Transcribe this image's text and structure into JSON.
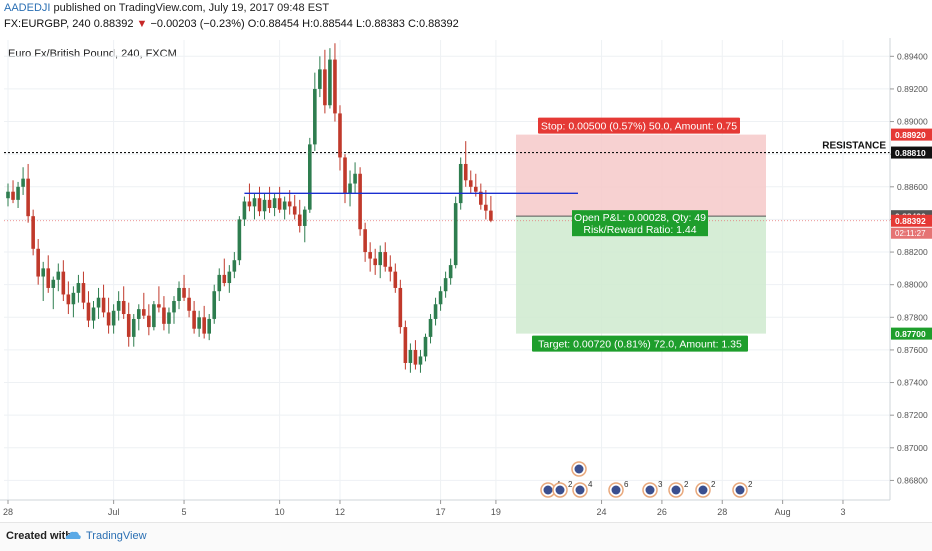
{
  "header": {
    "author": "AADEDJI",
    "published": "published on TradingView.com, July 19, 2017 09:48 EST",
    "symbol": "FX:EURGBP, 240",
    "last": "0.88392",
    "change_arrow": "▼",
    "change": "−0.00203 (−0.23%)",
    "open": "O:0.88454",
    "high": "H:0.88544",
    "low": "L:0.88383",
    "close": "C:0.88392"
  },
  "chart_title": "Euro Fx/British Pound, 240, FXCM",
  "footer": {
    "created_with": "Created with",
    "brand": "TradingView"
  },
  "colors": {
    "up": "#2e7d4f",
    "down": "#c0392b",
    "stop_zone": "#f6c9c9",
    "target_zone": "#cfeacf",
    "stop_label": "#e53935",
    "target_label": "#1e9e2c",
    "trendline": "#1a2fd0",
    "resistance": "#111111"
  },
  "chart_data": {
    "type": "candlestick",
    "title": "Euro Fx/British Pound, 240, FXCM",
    "ylim": [
      0.8668,
      0.895
    ],
    "y_ticks": [
      "0.89400",
      "0.89200",
      "0.89000",
      "0.88800",
      "0.88600",
      "0.88400",
      "0.88200",
      "0.88000",
      "0.87800",
      "0.87600",
      "0.87400",
      "0.87200",
      "0.87000",
      "0.86800"
    ],
    "x_ticks": [
      "28",
      "Jul",
      "5",
      "10",
      "12",
      "17",
      "19",
      "24",
      "26",
      "28",
      "Aug",
      "3"
    ],
    "grid": true,
    "candles": [
      [
        0.8853,
        0.8862,
        0.8848,
        0.8857
      ],
      [
        0.8857,
        0.8864,
        0.885,
        0.8852
      ],
      [
        0.8852,
        0.8863,
        0.8847,
        0.886
      ],
      [
        0.886,
        0.8872,
        0.8855,
        0.8865
      ],
      [
        0.8865,
        0.8874,
        0.8838,
        0.8842
      ],
      [
        0.8842,
        0.8846,
        0.8818,
        0.8822
      ],
      [
        0.8822,
        0.8828,
        0.88,
        0.8805
      ],
      [
        0.8805,
        0.8814,
        0.879,
        0.881
      ],
      [
        0.881,
        0.8818,
        0.8795,
        0.8798
      ],
      [
        0.8798,
        0.8805,
        0.8785,
        0.8803
      ],
      [
        0.8803,
        0.8813,
        0.8796,
        0.8808
      ],
      [
        0.8808,
        0.8815,
        0.879,
        0.8794
      ],
      [
        0.8794,
        0.8802,
        0.8782,
        0.8788
      ],
      [
        0.8788,
        0.8799,
        0.878,
        0.8795
      ],
      [
        0.8795,
        0.8806,
        0.8789,
        0.8801
      ],
      [
        0.8801,
        0.8808,
        0.8785,
        0.8789
      ],
      [
        0.8789,
        0.8796,
        0.8774,
        0.8778
      ],
      [
        0.8778,
        0.879,
        0.8773,
        0.8786
      ],
      [
        0.8786,
        0.8798,
        0.8779,
        0.8792
      ],
      [
        0.8792,
        0.88,
        0.878,
        0.8783
      ],
      [
        0.8783,
        0.8792,
        0.877,
        0.8775
      ],
      [
        0.8775,
        0.8788,
        0.877,
        0.8784
      ],
      [
        0.8784,
        0.8796,
        0.8778,
        0.879
      ],
      [
        0.879,
        0.8799,
        0.8779,
        0.8782
      ],
      [
        0.8782,
        0.8789,
        0.8762,
        0.8768
      ],
      [
        0.8768,
        0.8782,
        0.8762,
        0.8779
      ],
      [
        0.8779,
        0.8788,
        0.8772,
        0.8785
      ],
      [
        0.8785,
        0.8795,
        0.8779,
        0.8781
      ],
      [
        0.8781,
        0.8788,
        0.8769,
        0.8774
      ],
      [
        0.8774,
        0.879,
        0.8772,
        0.8788
      ],
      [
        0.8788,
        0.8799,
        0.8783,
        0.8786
      ],
      [
        0.8786,
        0.8793,
        0.8772,
        0.8776
      ],
      [
        0.8776,
        0.8786,
        0.877,
        0.8783
      ],
      [
        0.8783,
        0.8793,
        0.8776,
        0.879
      ],
      [
        0.879,
        0.8802,
        0.8785,
        0.8798
      ],
      [
        0.8798,
        0.8806,
        0.879,
        0.8792
      ],
      [
        0.8792,
        0.8798,
        0.878,
        0.8784
      ],
      [
        0.8784,
        0.879,
        0.877,
        0.8773
      ],
      [
        0.8773,
        0.8784,
        0.8768,
        0.878
      ],
      [
        0.878,
        0.8787,
        0.8767,
        0.877
      ],
      [
        0.877,
        0.8782,
        0.8766,
        0.8779
      ],
      [
        0.8779,
        0.88,
        0.8776,
        0.8796
      ],
      [
        0.8796,
        0.881,
        0.879,
        0.8806
      ],
      [
        0.8806,
        0.8816,
        0.8799,
        0.8801
      ],
      [
        0.8801,
        0.8812,
        0.8795,
        0.8808
      ],
      [
        0.8808,
        0.882,
        0.8804,
        0.8815
      ],
      [
        0.8815,
        0.8842,
        0.8812,
        0.884
      ],
      [
        0.884,
        0.8854,
        0.8836,
        0.8851
      ],
      [
        0.8851,
        0.8862,
        0.8845,
        0.8848
      ],
      [
        0.8848,
        0.8856,
        0.884,
        0.8853
      ],
      [
        0.8853,
        0.886,
        0.8842,
        0.8845
      ],
      [
        0.8845,
        0.8856,
        0.884,
        0.8852
      ],
      [
        0.8852,
        0.886,
        0.8844,
        0.8847
      ],
      [
        0.8847,
        0.8856,
        0.8842,
        0.8853
      ],
      [
        0.8853,
        0.886,
        0.8844,
        0.8846
      ],
      [
        0.8846,
        0.8854,
        0.884,
        0.8851
      ],
      [
        0.8851,
        0.8858,
        0.8843,
        0.8848
      ],
      [
        0.8848,
        0.8855,
        0.884,
        0.8843
      ],
      [
        0.8843,
        0.8852,
        0.8832,
        0.8836
      ],
      [
        0.8836,
        0.8848,
        0.8826,
        0.8846
      ],
      [
        0.8846,
        0.889,
        0.8844,
        0.8886
      ],
      [
        0.8886,
        0.893,
        0.8882,
        0.892
      ],
      [
        0.892,
        0.894,
        0.8915,
        0.8932
      ],
      [
        0.8932,
        0.8944,
        0.8905,
        0.891
      ],
      [
        0.891,
        0.8945,
        0.8908,
        0.8938
      ],
      [
        0.8938,
        0.8948,
        0.89,
        0.8905
      ],
      [
        0.8905,
        0.891,
        0.887,
        0.8878
      ],
      [
        0.8878,
        0.888,
        0.885,
        0.8856
      ],
      [
        0.8856,
        0.887,
        0.8848,
        0.8862
      ],
      [
        0.8862,
        0.8875,
        0.8856,
        0.8868
      ],
      [
        0.8868,
        0.8872,
        0.883,
        0.8834
      ],
      [
        0.8834,
        0.8838,
        0.8814,
        0.882
      ],
      [
        0.882,
        0.8826,
        0.8808,
        0.8816
      ],
      [
        0.8816,
        0.8822,
        0.8806,
        0.8812
      ],
      [
        0.8812,
        0.8824,
        0.8804,
        0.882
      ],
      [
        0.882,
        0.8826,
        0.8808,
        0.8811
      ],
      [
        0.8811,
        0.8818,
        0.8802,
        0.8808
      ],
      [
        0.8808,
        0.8813,
        0.8795,
        0.8798
      ],
      [
        0.8798,
        0.8803,
        0.877,
        0.8774
      ],
      [
        0.8774,
        0.8778,
        0.8748,
        0.8752
      ],
      [
        0.8752,
        0.8764,
        0.8746,
        0.876
      ],
      [
        0.876,
        0.8766,
        0.8748,
        0.8751
      ],
      [
        0.8751,
        0.876,
        0.8746,
        0.8756
      ],
      [
        0.8756,
        0.877,
        0.8753,
        0.8768
      ],
      [
        0.8768,
        0.8782,
        0.8764,
        0.8779
      ],
      [
        0.8779,
        0.8792,
        0.8775,
        0.8788
      ],
      [
        0.8788,
        0.8799,
        0.8784,
        0.8796
      ],
      [
        0.8796,
        0.8808,
        0.8792,
        0.8804
      ],
      [
        0.8804,
        0.8816,
        0.88,
        0.8812
      ],
      [
        0.8812,
        0.8854,
        0.881,
        0.885
      ],
      [
        0.885,
        0.8878,
        0.8846,
        0.8874
      ],
      [
        0.8874,
        0.8888,
        0.886,
        0.8864
      ],
      [
        0.8864,
        0.887,
        0.8856,
        0.886
      ],
      [
        0.886,
        0.8868,
        0.8854,
        0.8857
      ],
      [
        0.8857,
        0.8862,
        0.8846,
        0.8849
      ],
      [
        0.8849,
        0.8858,
        0.884,
        0.88454
      ],
      [
        0.88454,
        0.88544,
        0.88383,
        0.88392
      ]
    ],
    "horizontal_lines": [
      {
        "label": "RESISTANCE",
        "value": 0.8881,
        "style": "dotted"
      }
    ],
    "trendline": {
      "from": [
        47,
        0.8856
      ],
      "to": [
        101,
        0.8856
      ]
    },
    "current_price": {
      "value": 0.88392,
      "label": "0.88392",
      "countdown": "02:11:27"
    },
    "position": {
      "entry": 0.8842,
      "stop": 0.8892,
      "target": 0.877,
      "stop_label": "Stop: 0.00500 (0.57%) 50.0, Amount: 0.75",
      "target_label": "Target: 0.00720 (0.81%) 72.0, Amount: 1.35",
      "pnl_label": "Open P&L: 0.00028, Qty: 49",
      "rr_label": "Risk/Reward Ratio: 1.44"
    },
    "axis_badges": [
      {
        "label": "0.88920",
        "value": 0.8892,
        "color": "#e53935"
      },
      {
        "label": "0.88810",
        "value": 0.8881,
        "color": "#111111"
      },
      {
        "label": "0.88420",
        "value": 0.8842,
        "color": "#555555"
      },
      {
        "label": "0.88392",
        "value": 0.88392,
        "color": "#e53935"
      },
      {
        "label": "0.87700",
        "value": 0.877,
        "color": "#1e9e2c"
      }
    ],
    "event_markers": [
      "4",
      "2",
      "4",
      "6",
      "3",
      "2",
      "2",
      "2"
    ]
  }
}
